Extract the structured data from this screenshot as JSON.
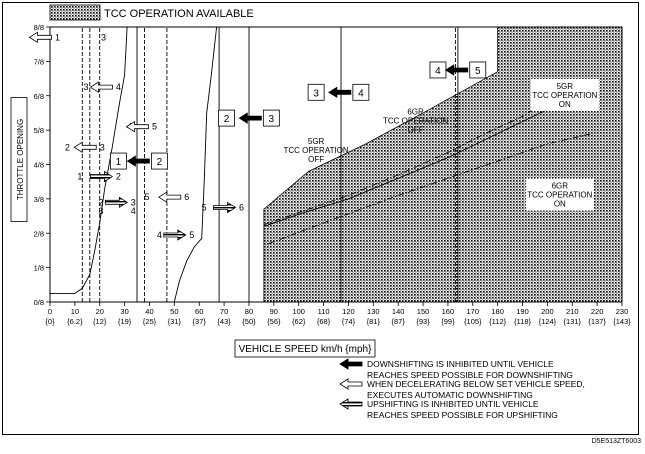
{
  "chart_data": {
    "type": "line",
    "legend_top": "TCC OPERATION AVAILABLE",
    "xlabel": "VEHICLE SPEED  km/h {mph}",
    "ylabel": "THROTTLE OPENING",
    "xlim": [
      0,
      230
    ],
    "ylim": [
      0,
      8
    ],
    "x_ticks": [
      0,
      10,
      20,
      30,
      40,
      50,
      60,
      70,
      80,
      90,
      100,
      110,
      120,
      130,
      140,
      150,
      160,
      170,
      180,
      190,
      200,
      210,
      220,
      230
    ],
    "x_tick_labels_kmh": [
      "0",
      "10",
      "20",
      "30",
      "40",
      "50",
      "60",
      "70",
      "80",
      "90",
      "100",
      "110",
      "120",
      "130",
      "140",
      "150",
      "160",
      "170",
      "180",
      "190",
      "200",
      "210",
      "220",
      "230"
    ],
    "x_tick_labels_mph": [
      "{0}",
      "{6.2}",
      "{12}",
      "{19}",
      "{25}",
      "{31}",
      "{37}",
      "{43}",
      "{50}",
      "{56}",
      "{62}",
      "{68}",
      "{74}",
      "{81}",
      "{87}",
      "{93}",
      "{99}",
      "{105}",
      "{112}",
      "{118}",
      "{124}",
      "{131}",
      "{137}",
      "{143}"
    ],
    "y_ticks": [
      0,
      1,
      2,
      3,
      4,
      5,
      6,
      7,
      8
    ],
    "y_tick_labels": [
      "0/8",
      "1/8",
      "2/8",
      "3/8",
      "4/8",
      "5/8",
      "6/8",
      "7/8",
      "8/8"
    ],
    "grid": false,
    "series": [
      {
        "style": "solid",
        "points": [
          [
            0,
            0.25
          ],
          [
            10,
            0.25
          ],
          [
            13,
            0.4
          ],
          [
            16,
            0.8
          ],
          [
            18,
            1.5
          ],
          [
            20,
            2.3
          ],
          [
            22,
            3.3
          ],
          [
            25,
            4.5
          ],
          [
            28,
            5.8
          ],
          [
            30,
            6.6
          ],
          [
            31,
            8
          ]
        ]
      },
      {
        "style": "dashed",
        "points": [
          [
            13,
            0
          ],
          [
            13,
            8
          ]
        ]
      },
      {
        "style": "dashed",
        "points": [
          [
            16,
            0
          ],
          [
            16,
            8
          ]
        ]
      },
      {
        "style": "dashed",
        "points": [
          [
            20,
            0
          ],
          [
            20,
            8
          ]
        ]
      },
      {
        "style": "solid",
        "points": [
          [
            35,
            0
          ],
          [
            35,
            8
          ]
        ]
      },
      {
        "style": "dashed",
        "points": [
          [
            38,
            0
          ],
          [
            38,
            8
          ]
        ]
      },
      {
        "style": "dashed",
        "points": [
          [
            47,
            0
          ],
          [
            47,
            8
          ]
        ]
      },
      {
        "style": "solid",
        "points": [
          [
            50,
            0
          ],
          [
            52,
            0.6
          ],
          [
            55,
            1.2
          ],
          [
            58,
            1.6
          ],
          [
            61,
            1.85
          ],
          [
            62,
            3.5
          ],
          [
            63,
            5.5
          ],
          [
            65,
            6.7
          ],
          [
            67,
            8
          ]
        ]
      },
      {
        "style": "solid",
        "points": [
          [
            68,
            0
          ],
          [
            68,
            8
          ]
        ]
      },
      {
        "style": "solid",
        "points": [
          [
            80,
            0
          ],
          [
            80,
            8
          ]
        ]
      },
      {
        "style": "solid",
        "points": [
          [
            117,
            0
          ],
          [
            117,
            8
          ]
        ]
      },
      {
        "style": "dashed",
        "points": [
          [
            163,
            0
          ],
          [
            163,
            8
          ]
        ]
      },
      {
        "style": "solid",
        "points": [
          [
            164,
            0
          ],
          [
            164,
            8
          ]
        ]
      },
      {
        "style": "solid",
        "points": [
          [
            86,
            2.2
          ],
          [
            100,
            2.55
          ],
          [
            120,
            3
          ],
          [
            140,
            3.6
          ],
          [
            160,
            4.2
          ],
          [
            180,
            4.9
          ],
          [
            200,
            5.6
          ]
        ]
      },
      {
        "style": "dash-dot",
        "points": [
          [
            86,
            2.25
          ],
          [
            100,
            2.6
          ],
          [
            120,
            3.1
          ],
          [
            140,
            3.7
          ],
          [
            160,
            4.35
          ],
          [
            175,
            4.9
          ],
          [
            190,
            5.4
          ],
          [
            210,
            6.3
          ]
        ]
      },
      {
        "style": "dash-dot",
        "points": [
          [
            88,
            1.7
          ],
          [
            110,
            2.3
          ],
          [
            140,
            3.1
          ],
          [
            160,
            3.6
          ],
          [
            200,
            4.6
          ],
          [
            218,
            4.9
          ]
        ]
      }
    ],
    "regions": [
      {
        "name": "tcc-operation-available",
        "points": [
          [
            86,
            0
          ],
          [
            86,
            2.7
          ],
          [
            104,
            3.8
          ],
          [
            127,
            4.6
          ],
          [
            150,
            5.5
          ],
          [
            180,
            6.7
          ],
          [
            180,
            8
          ],
          [
            230,
            8
          ],
          [
            230,
            0
          ]
        ]
      }
    ],
    "annotations": [
      {
        "text": "1",
        "x": 3,
        "y": 7.7,
        "arrow": "open-left"
      },
      {
        "text": "3",
        "x": 21.5,
        "y": 7.7
      },
      {
        "text": "3",
        "x": 14.5,
        "y": 6.25
      },
      {
        "text": "4",
        "x": 27.5,
        "y": 6.25,
        "arrow": "open-left"
      },
      {
        "text": "4",
        "x": 32,
        "y": 5.1
      },
      {
        "text": "5",
        "x": 42,
        "y": 5.1,
        "arrow": "open-left"
      },
      {
        "text": "2",
        "x": 7,
        "y": 4.5
      },
      {
        "text": "3",
        "x": 21,
        "y": 4.5,
        "arrow": "open-left"
      },
      {
        "text": "1",
        "x": 27.5,
        "y": 4.1,
        "boxed": true
      },
      {
        "text": "2",
        "x": 44,
        "y": 4.1,
        "boxed": true,
        "arrow": "solid-left"
      },
      {
        "text": "1",
        "x": 12,
        "y": 3.65
      },
      {
        "text": "2",
        "x": 27.5,
        "y": 3.65,
        "arrow": "hatched-right"
      },
      {
        "text": "2",
        "x": 20.5,
        "y": 2.9
      },
      {
        "text": "3",
        "x": 20.5,
        "y": 2.65
      },
      {
        "text": "3",
        "x": 33.5,
        "y": 2.9,
        "arrow": "hatched-right"
      },
      {
        "text": "4",
        "x": 33.5,
        "y": 2.65
      },
      {
        "text": "5",
        "x": 39,
        "y": 3.05
      },
      {
        "text": "6",
        "x": 55,
        "y": 3.05,
        "arrow": "open-left"
      },
      {
        "text": "4",
        "x": 44,
        "y": 1.95
      },
      {
        "text": "5",
        "x": 57,
        "y": 1.95,
        "arrow": "hatched-right"
      },
      {
        "text": "5",
        "x": 62,
        "y": 2.75
      },
      {
        "text": "6",
        "x": 77,
        "y": 2.75,
        "arrow": "hatched-right"
      },
      {
        "text": "2",
        "x": 71,
        "y": 5.35,
        "boxed": true
      },
      {
        "text": "3",
        "x": 89,
        "y": 5.35,
        "boxed": true,
        "arrow": "solid-left"
      },
      {
        "text": "3",
        "x": 107,
        "y": 6.1,
        "boxed": true
      },
      {
        "text": "4",
        "x": 125,
        "y": 6.1,
        "boxed": true,
        "arrow": "solid-left"
      },
      {
        "text": "4",
        "x": 156,
        "y": 6.75,
        "boxed": true
      },
      {
        "text": "5",
        "x": 172,
        "y": 6.75,
        "boxed": true,
        "arrow": "solid-left"
      }
    ],
    "curve_labels": [
      {
        "lines": [
          "5GR",
          "TCC OPERATION",
          "OFF"
        ],
        "x": 107,
        "y": 4.6
      },
      {
        "lines": [
          "6GR",
          "TCC OPERATION",
          "OFF"
        ],
        "x": 147,
        "y": 5.45
      },
      {
        "lines": [
          "5GR",
          "TCC OPERATION",
          "ON"
        ],
        "x": 207,
        "y": 6.2
      },
      {
        "lines": [
          "6GR",
          "TCC OPERATION",
          "ON"
        ],
        "x": 205,
        "y": 3.3
      }
    ],
    "legend_items": [
      {
        "icon": "solid-arrow",
        "lines": [
          "DOWNSHIFTING IS INHIBITED UNTIL VEHICLE",
          "REACHES SPEED POSSIBLE FOR DOWNSHIFTING"
        ]
      },
      {
        "icon": "open-arrow",
        "lines": [
          "WHEN DECELERATING BELOW SET VEHICLE SPEED,",
          "EXECUTES AUTOMATIC DOWNSHIFTING"
        ]
      },
      {
        "icon": "hatched-arrow",
        "lines": [
          "UPSHIFTING IS INHIBITED UNTIL VEHICLE",
          "REACHES SPEED POSSIBLE FOR UPSHIFTING"
        ]
      }
    ]
  },
  "diagram_code": "D5E513ZT6003"
}
